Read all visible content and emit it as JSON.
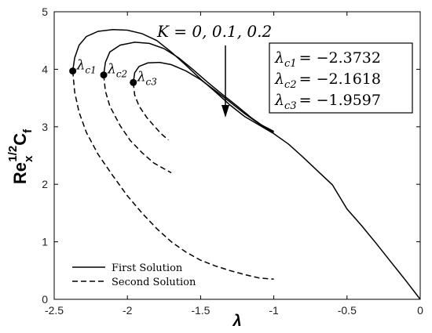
{
  "chart_data": {
    "type": "line",
    "xlabel": "λ",
    "ylabel": {
      "base": "Re",
      "sub": "x",
      "sup": "1/2",
      "tail": "C",
      "tail_sub": "f"
    },
    "xlim": [
      -2.5,
      0
    ],
    "ylim": [
      0,
      5
    ],
    "xticks": [
      -2.5,
      -2,
      -1.5,
      -1,
      -0.5,
      0
    ],
    "xtick_labels": [
      "-2.5",
      "-2",
      "-1.5",
      "-1",
      "-0.5",
      "0"
    ],
    "yticks": [
      0,
      1,
      2,
      3,
      4,
      5
    ],
    "ytick_labels": [
      "0",
      "1",
      "2",
      "3",
      "4",
      "5"
    ],
    "grid": false,
    "legend": {
      "position": "lower-left",
      "entries": [
        {
          "label": "First Solution",
          "style": "solid"
        },
        {
          "label": "Second Solution",
          "style": "dashed"
        }
      ]
    },
    "annotation": {
      "text": "K = 0, 0.1, 0.2",
      "arrow": "down"
    },
    "critical_box": [
      {
        "sym": "λ",
        "sub": "c1",
        "value": "= −2.3732"
      },
      {
        "sym": "λ",
        "sub": "c2",
        "value": "= −2.1618"
      },
      {
        "sym": "λ",
        "sub": "c3",
        "value": "= −1.9597"
      }
    ],
    "critical_points": [
      {
        "sym": "λ",
        "sub": "c1",
        "x": -2.3732,
        "y": 3.97
      },
      {
        "sym": "λ",
        "sub": "c2",
        "x": -2.1618,
        "y": 3.9
      },
      {
        "sym": "λ",
        "sub": "c3",
        "x": -1.9597,
        "y": 3.77
      }
    ],
    "series": [
      {
        "style": "solid",
        "color": "#000000",
        "points": [
          [
            -2.3732,
            3.97
          ],
          [
            -2.36,
            4.2
          ],
          [
            -2.33,
            4.42
          ],
          [
            -2.28,
            4.57
          ],
          [
            -2.2,
            4.66
          ],
          [
            -2.1,
            4.69
          ],
          [
            -2.0,
            4.68
          ],
          [
            -1.9,
            4.62
          ],
          [
            -1.8,
            4.5
          ],
          [
            -1.7,
            4.3
          ],
          [
            -1.6,
            4.07
          ],
          [
            -1.5,
            3.83
          ],
          [
            -1.4,
            3.61
          ],
          [
            -1.3,
            3.38
          ],
          [
            -1.2,
            3.18
          ],
          [
            -1.1,
            3.03
          ],
          [
            -1.0,
            2.88
          ],
          [
            -0.9,
            2.7
          ],
          [
            -0.8,
            2.47
          ],
          [
            -0.7,
            2.23
          ],
          [
            -0.6,
            1.99
          ],
          [
            -0.5,
            1.57
          ],
          [
            -0.4,
            1.28
          ],
          [
            -0.3,
            0.97
          ],
          [
            -0.2,
            0.65
          ],
          [
            -0.1,
            0.33
          ],
          [
            0,
            0
          ]
        ]
      },
      {
        "style": "solid",
        "color": "#000000",
        "points": [
          [
            -2.1618,
            3.9
          ],
          [
            -2.15,
            4.12
          ],
          [
            -2.12,
            4.3
          ],
          [
            -2.05,
            4.42
          ],
          [
            -1.95,
            4.47
          ],
          [
            -1.85,
            4.45
          ],
          [
            -1.75,
            4.36
          ],
          [
            -1.65,
            4.2
          ],
          [
            -1.55,
            3.99
          ],
          [
            -1.45,
            3.77
          ],
          [
            -1.35,
            3.56
          ],
          [
            -1.25,
            3.36
          ],
          [
            -1.15,
            3.15
          ],
          [
            -1.05,
            2.97
          ],
          [
            -1.0,
            2.9
          ]
        ]
      },
      {
        "style": "solid",
        "color": "#000000",
        "points": [
          [
            -1.9597,
            3.77
          ],
          [
            -1.95,
            3.94
          ],
          [
            -1.92,
            4.05
          ],
          [
            -1.86,
            4.11
          ],
          [
            -1.78,
            4.12
          ],
          [
            -1.7,
            4.08
          ],
          [
            -1.6,
            3.97
          ],
          [
            -1.5,
            3.82
          ],
          [
            -1.4,
            3.63
          ],
          [
            -1.3,
            3.43
          ],
          [
            -1.2,
            3.23
          ],
          [
            -1.1,
            3.05
          ],
          [
            -1.0,
            2.92
          ]
        ]
      },
      {
        "style": "dashed",
        "color": "#000000",
        "points": [
          [
            -2.3732,
            3.97
          ],
          [
            -2.36,
            3.6
          ],
          [
            -2.33,
            3.25
          ],
          [
            -2.28,
            2.9
          ],
          [
            -2.2,
            2.52
          ],
          [
            -2.1,
            2.15
          ],
          [
            -2.0,
            1.8
          ],
          [
            -1.9,
            1.5
          ],
          [
            -1.8,
            1.23
          ],
          [
            -1.7,
            1.0
          ],
          [
            -1.6,
            0.82
          ],
          [
            -1.5,
            0.68
          ],
          [
            -1.4,
            0.58
          ],
          [
            -1.3,
            0.5
          ],
          [
            -1.2,
            0.43
          ],
          [
            -1.1,
            0.37
          ],
          [
            -1.0,
            0.35
          ]
        ]
      },
      {
        "style": "dashed",
        "color": "#000000",
        "points": [
          [
            -2.1618,
            3.9
          ],
          [
            -2.15,
            3.62
          ],
          [
            -2.12,
            3.36
          ],
          [
            -2.05,
            3.02
          ],
          [
            -1.98,
            2.76
          ],
          [
            -1.9,
            2.55
          ],
          [
            -1.82,
            2.37
          ],
          [
            -1.75,
            2.27
          ],
          [
            -1.7,
            2.2
          ]
        ]
      },
      {
        "style": "dashed",
        "color": "#000000",
        "points": [
          [
            -1.9597,
            3.77
          ],
          [
            -1.95,
            3.55
          ],
          [
            -1.92,
            3.36
          ],
          [
            -1.87,
            3.17
          ],
          [
            -1.82,
            3.02
          ],
          [
            -1.77,
            2.88
          ],
          [
            -1.72,
            2.77
          ]
        ]
      }
    ]
  }
}
